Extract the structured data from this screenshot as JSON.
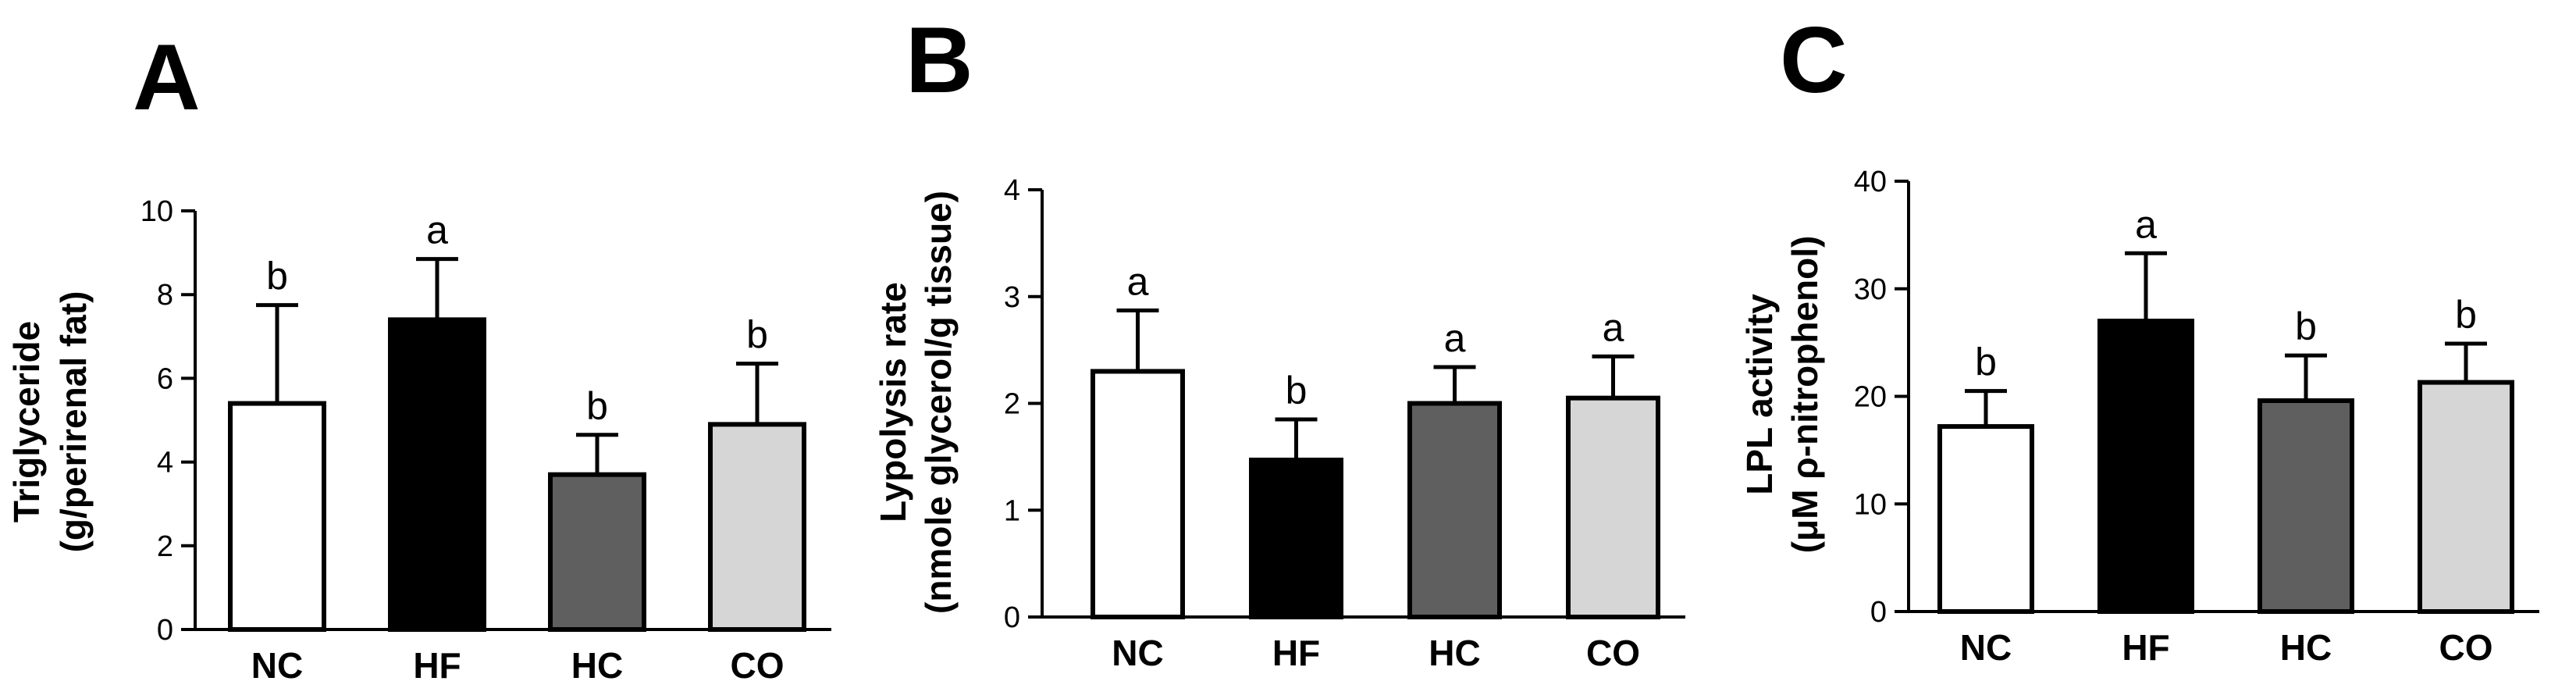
{
  "chart_data": [
    {
      "type": "bar",
      "panel_label": "A",
      "ylabel_lines": [
        "Triglyceride",
        "(g/perirenal fat)"
      ],
      "categories": [
        "NC",
        "HF",
        "HC",
        "CO"
      ],
      "values": [
        5.4,
        7.4,
        3.7,
        4.9
      ],
      "errors": [
        2.35,
        1.45,
        0.95,
        1.45
      ],
      "significance": [
        "b",
        "a",
        "b",
        "b"
      ],
      "bar_colors": [
        "#ffffff",
        "#000000",
        "#5f5f5f",
        "#d6d6d6"
      ],
      "ylim": [
        0,
        10
      ],
      "yticks": [
        "0",
        "2",
        "4",
        "6",
        "8",
        "10"
      ],
      "ytick_values": [
        0,
        2,
        4,
        6,
        8,
        10
      ]
    },
    {
      "type": "bar",
      "panel_label": "B",
      "ylabel_lines": [
        "Lypolysis rate",
        "(nmole glycerol/g tissue)"
      ],
      "categories": [
        "NC",
        "HF",
        "HC",
        "CO"
      ],
      "values": [
        2.3,
        1.47,
        2.0,
        2.05
      ],
      "errors": [
        0.57,
        0.38,
        0.34,
        0.39
      ],
      "significance": [
        "a",
        "b",
        "a",
        "a"
      ],
      "bar_colors": [
        "#ffffff",
        "#000000",
        "#5f5f5f",
        "#d6d6d6"
      ],
      "ylim": [
        0,
        4
      ],
      "yticks": [
        "0",
        "1",
        "2",
        "3",
        "4"
      ],
      "ytick_values": [
        0,
        1,
        2,
        3,
        4
      ]
    },
    {
      "type": "bar",
      "panel_label": "C",
      "ylabel_lines": [
        "LPL activity",
        "(μM ρ-nitrophenol)"
      ],
      "categories": [
        "NC",
        "HF",
        "HC",
        "CO"
      ],
      "values": [
        17.2,
        27.0,
        19.6,
        21.3
      ],
      "errors": [
        3.3,
        6.3,
        4.2,
        3.6
      ],
      "significance": [
        "b",
        "a",
        "b",
        "b"
      ],
      "bar_colors": [
        "#ffffff",
        "#000000",
        "#5f5f5f",
        "#d6d6d6"
      ],
      "ylim": [
        0,
        40
      ],
      "yticks": [
        "0",
        "10",
        "20",
        "30",
        "40"
      ],
      "ytick_values": [
        0,
        10,
        20,
        30,
        40
      ]
    }
  ]
}
